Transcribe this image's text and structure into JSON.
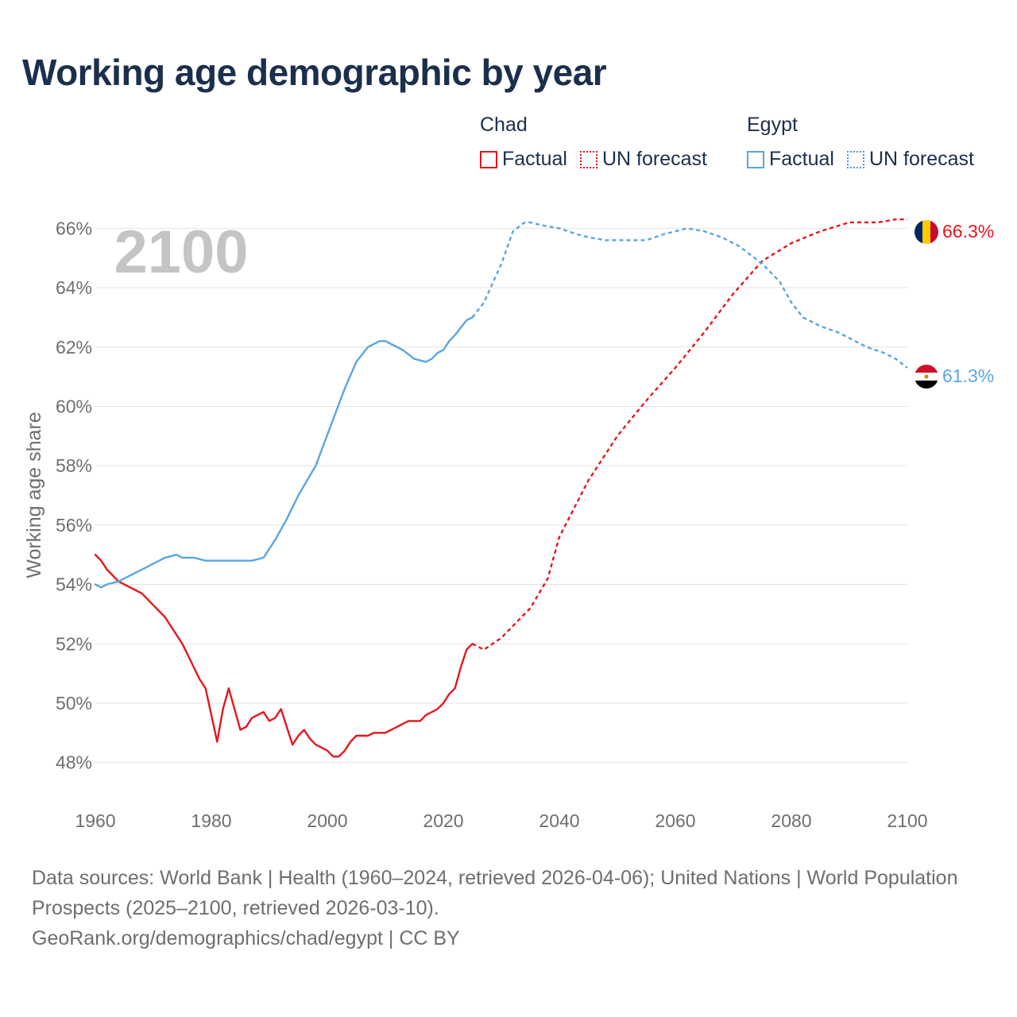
{
  "title": "Working age demographic by year",
  "legend": {
    "chad": {
      "country": "Chad",
      "factual": "Factual",
      "forecast": "UN forecast"
    },
    "egypt": {
      "country": "Egypt",
      "factual": "Factual",
      "forecast": "UN forecast"
    }
  },
  "colors": {
    "chad": "#e8151b",
    "egypt": "#5aa5e2",
    "year_label": "#c4c4c4"
  },
  "footer": {
    "sources": "Data sources: World Bank | Health (1960–2024, retrieved 2026-04-06); United Nations | World Population Prospects (2025–2100, retrieved 2026-03-10).",
    "credit": "GeoRank.org/demographics/chad/egypt | CC BY"
  },
  "chart_data": {
    "type": "line",
    "title": "Working age demographic by year",
    "xlabel": "",
    "ylabel": "Working age share",
    "xlim": [
      1960,
      2100
    ],
    "ylim": [
      47,
      67
    ],
    "x_ticks": [
      1960,
      1980,
      2000,
      2020,
      2040,
      2060,
      2080,
      2100
    ],
    "x_tick_labels": [
      "1960",
      "1980",
      "2000",
      "2020",
      "2040",
      "2060",
      "2080",
      "2100"
    ],
    "y_ticks": [
      48,
      50,
      52,
      54,
      56,
      58,
      60,
      62,
      64,
      66
    ],
    "y_tick_labels": [
      "48%",
      "50%",
      "52%",
      "54%",
      "56%",
      "58%",
      "60%",
      "62%",
      "64%",
      "66%"
    ],
    "grid": true,
    "year_label": "2100",
    "series": [
      {
        "name": "Chad",
        "kind": "factual",
        "x": [
          1960,
          1961,
          1962,
          1964,
          1966,
          1968,
          1970,
          1972,
          1975,
          1978,
          1979,
          1981,
          1982,
          1983,
          1985,
          1986,
          1987,
          1989,
          1990,
          1991,
          1992,
          1994,
          1995,
          1996,
          1997,
          1998,
          2000,
          2001,
          2002,
          2003,
          2004,
          2005,
          2007,
          2008,
          2010,
          2014,
          2016,
          2017,
          2019,
          2020,
          2021,
          2022,
          2023,
          2024,
          2025
        ],
        "values": [
          55.0,
          54.8,
          54.5,
          54.1,
          53.9,
          53.7,
          53.3,
          52.9,
          52.0,
          50.8,
          50.5,
          48.7,
          49.8,
          50.5,
          49.1,
          49.2,
          49.5,
          49.7,
          49.4,
          49.5,
          49.8,
          48.6,
          48.9,
          49.1,
          48.8,
          48.6,
          48.4,
          48.2,
          48.2,
          48.4,
          48.7,
          48.9,
          48.9,
          49.0,
          49.0,
          49.4,
          49.4,
          49.6,
          49.8,
          50.0,
          50.3,
          50.5,
          51.2,
          51.8,
          52.0
        ]
      },
      {
        "name": "Chad",
        "kind": "forecast",
        "label": "66.3%",
        "x": [
          2025,
          2027,
          2030,
          2035,
          2038,
          2040,
          2045,
          2050,
          2055,
          2060,
          2065,
          2070,
          2075,
          2080,
          2085,
          2090,
          2095,
          2098,
          2100
        ],
        "values": [
          52.0,
          51.8,
          52.2,
          53.2,
          54.2,
          55.6,
          57.5,
          59.0,
          60.2,
          61.3,
          62.5,
          63.8,
          64.9,
          65.5,
          65.9,
          66.2,
          66.2,
          66.3,
          66.3
        ]
      },
      {
        "name": "Egypt",
        "kind": "factual",
        "x": [
          1960,
          1961,
          1962,
          1964,
          1966,
          1968,
          1970,
          1972,
          1974,
          1975,
          1977,
          1979,
          1981,
          1985,
          1987,
          1989,
          1991,
          1993,
          1995,
          1998,
          2003,
          2005,
          2007,
          2009,
          2010,
          2011,
          2013,
          2015,
          2017,
          2018,
          2019,
          2020,
          2021,
          2022,
          2024,
          2025
        ],
        "values": [
          54.0,
          53.9,
          54.0,
          54.1,
          54.3,
          54.5,
          54.7,
          54.9,
          55.0,
          54.9,
          54.9,
          54.8,
          54.8,
          54.8,
          54.8,
          54.9,
          55.5,
          56.2,
          57.0,
          58.0,
          60.6,
          61.5,
          62.0,
          62.2,
          62.2,
          62.1,
          61.9,
          61.6,
          61.5,
          61.6,
          61.8,
          61.9,
          62.2,
          62.4,
          62.9,
          63.0
        ]
      },
      {
        "name": "Egypt",
        "kind": "forecast",
        "label": "61.3%",
        "x": [
          2025,
          2027,
          2030,
          2032,
          2034,
          2035,
          2037,
          2040,
          2043,
          2045,
          2048,
          2050,
          2055,
          2058,
          2062,
          2065,
          2068,
          2071,
          2073,
          2075,
          2078,
          2080,
          2082,
          2085,
          2088,
          2090,
          2093,
          2096,
          2098,
          2100
        ],
        "values": [
          63.0,
          63.5,
          64.8,
          65.9,
          66.2,
          66.2,
          66.1,
          66.0,
          65.8,
          65.7,
          65.6,
          65.6,
          65.6,
          65.8,
          66.0,
          65.9,
          65.7,
          65.4,
          65.1,
          64.8,
          64.2,
          63.5,
          63.0,
          62.7,
          62.5,
          62.3,
          62.0,
          61.8,
          61.6,
          61.3
        ]
      }
    ]
  }
}
